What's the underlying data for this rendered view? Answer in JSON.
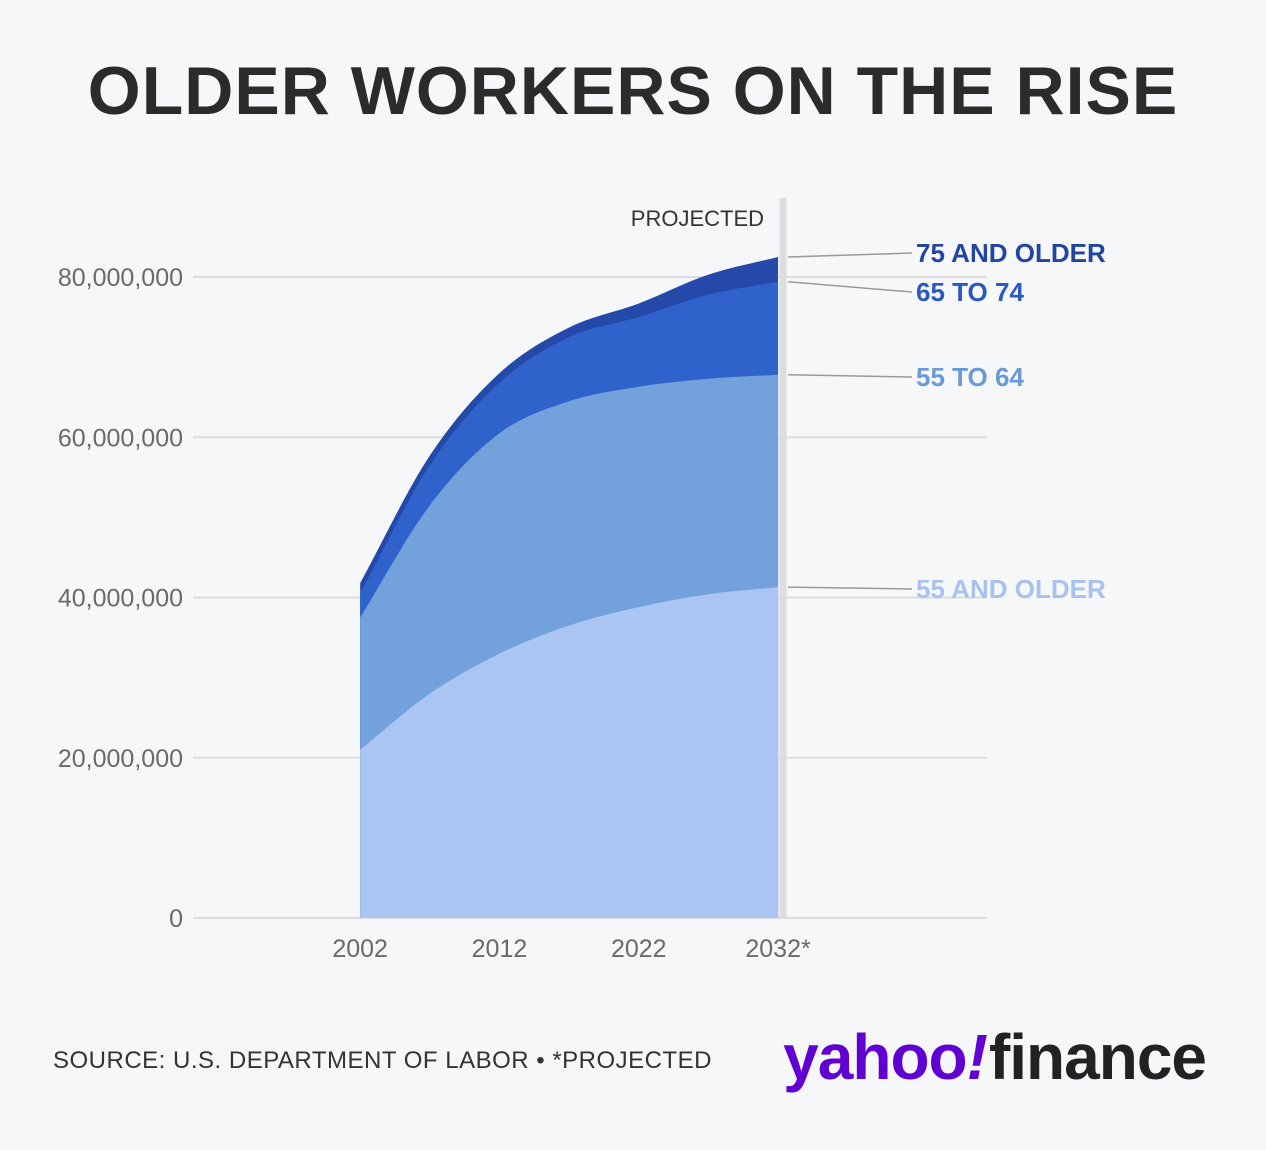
{
  "title": "OLDER WORKERS ON THE RISE",
  "source": "SOURCE: U.S. DEPARTMENT OF LABOR • *PROJECTED",
  "logo": {
    "yahoo": "yahoo",
    "bang": "!",
    "finance": "finance"
  },
  "colors": {
    "background": "#f6f7f9",
    "grid": "#dcdde0",
    "axis_text": "#6a6a6a",
    "projected_line": "#dcdde0",
    "leader": "#9a9a9a"
  },
  "chart_data": {
    "type": "area",
    "stacked": true,
    "projected_label": "PROJECTED",
    "x": [
      2002,
      2007,
      2012,
      2017,
      2022,
      2027,
      2032
    ],
    "x_tick_values": [
      2002,
      2012,
      2022,
      2032
    ],
    "x_tick_labels": [
      "2002",
      "2012",
      "2022",
      "2032*"
    ],
    "y_ticks": [
      0,
      20000000,
      40000000,
      60000000,
      80000000
    ],
    "y_tick_labels": [
      "0",
      "20,000,000",
      "40,000,000",
      "60,000,000",
      "80,000,000"
    ],
    "xlim": [
      1990,
      2047
    ],
    "ylim": [
      0,
      80000000
    ],
    "grid": true,
    "series": [
      {
        "name": "55 AND OLDER",
        "color": "#abc5f2",
        "label_color": "#a9c1ee",
        "values": [
          21000000,
          28000000,
          33000000,
          36500000,
          38800000,
          40400000,
          41300000
        ]
      },
      {
        "name": "55 TO 64",
        "color": "#72a1dc",
        "label_color": "#6a9ad8",
        "values": [
          37500000,
          51500000,
          60500000,
          64500000,
          66300000,
          67300000,
          67800000
        ]
      },
      {
        "name": "65 TO 74",
        "color": "#3062cc",
        "label_color": "#2b58c2",
        "values": [
          40500000,
          56500000,
          66800000,
          72500000,
          75000000,
          77800000,
          79400000
        ]
      },
      {
        "name": "75 AND OLDER",
        "color": "#2549a8",
        "label_color": "#23459f",
        "values": [
          41800000,
          57700000,
          68000000,
          73700000,
          76700000,
          80300000,
          82500000
        ]
      }
    ]
  }
}
